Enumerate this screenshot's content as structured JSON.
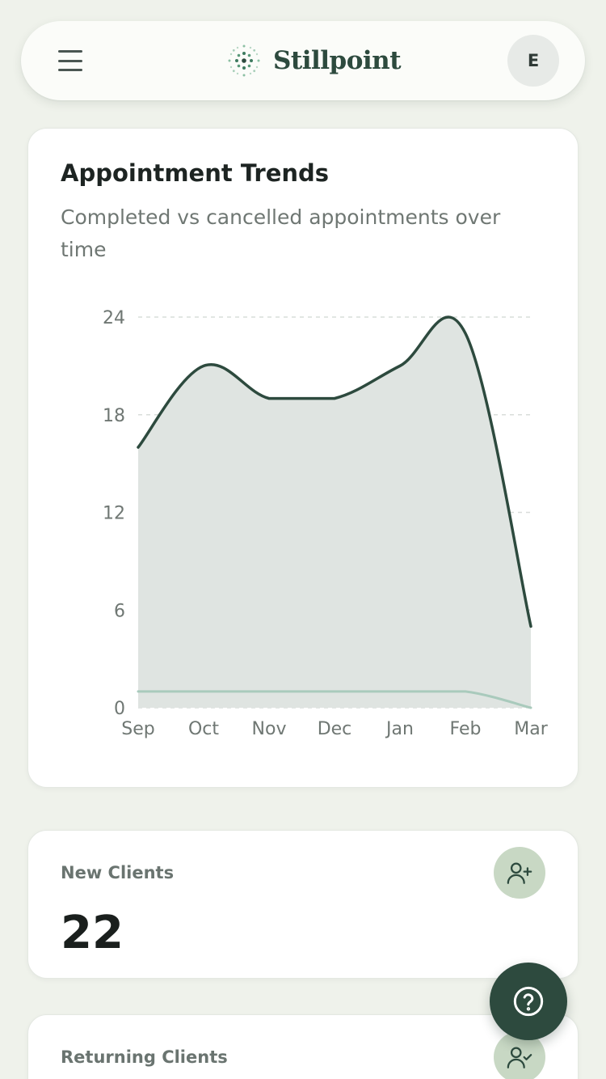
{
  "header": {
    "brand_name": "Stillpoint",
    "avatar_initial": "E"
  },
  "trends_card": {
    "title": "Appointment Trends",
    "subtitle": "Completed vs cancelled appointments over time"
  },
  "chart_data": {
    "type": "area",
    "categories": [
      "Sep",
      "Oct",
      "Nov",
      "Dec",
      "Jan",
      "Feb",
      "Mar"
    ],
    "y_ticks": [
      0,
      6,
      12,
      18,
      24
    ],
    "ylim": [
      0,
      24
    ],
    "grid": true,
    "series": [
      {
        "values": [
          16,
          21,
          19,
          19,
          21,
          23,
          5
        ],
        "color": "#2d4a3e",
        "fill": "#dfe4e1"
      },
      {
        "values": [
          1,
          1,
          1,
          1,
          1,
          1,
          0
        ],
        "color": "#a9cabc"
      }
    ]
  },
  "stats": [
    {
      "label": "New Clients",
      "value": "22",
      "icon": "user-plus-icon"
    },
    {
      "label": "Returning Clients",
      "value": "",
      "icon": "user-check-icon"
    }
  ],
  "colors": {
    "brand": "#2d4a3e",
    "background": "#eff2eb",
    "icon_badge": "#c8d8c4"
  }
}
